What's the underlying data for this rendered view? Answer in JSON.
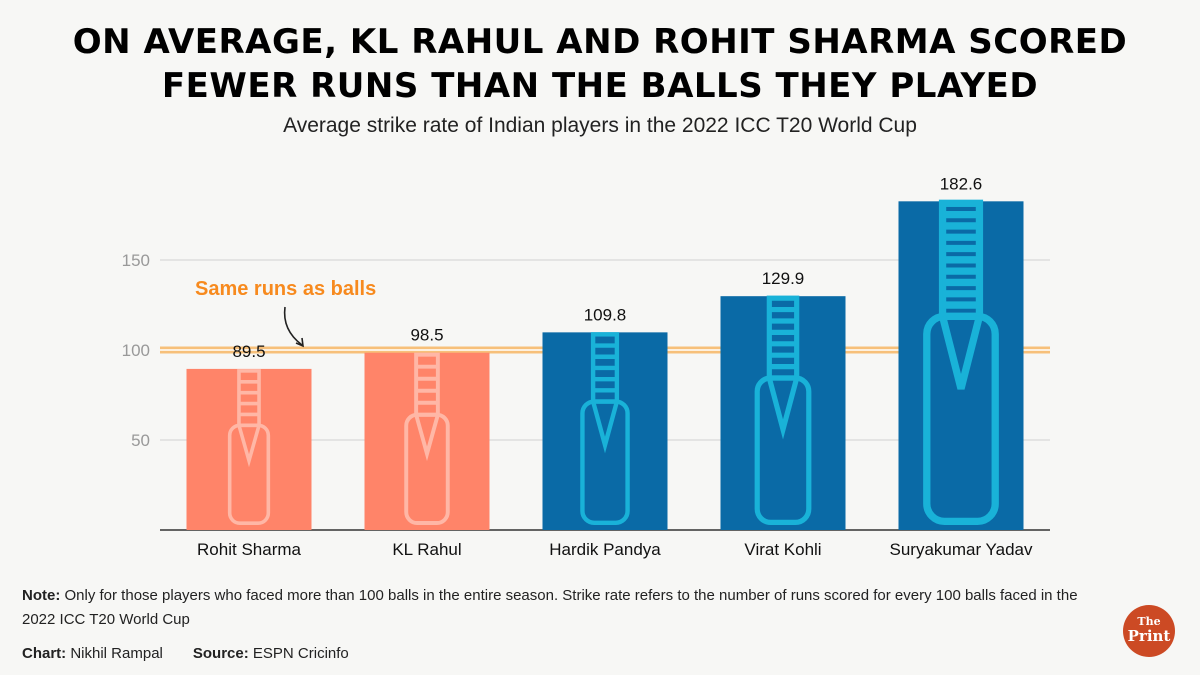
{
  "title_lines": [
    "ON AVERAGE, KL RAHUL AND ROHIT SHARMA SCORED",
    "FEWER RUNS THAN THE BALLS THEY PLAYED"
  ],
  "subtitle": "Average strike rate of Indian players in the 2022 ICC T20 World Cup",
  "chart_data": {
    "type": "bar",
    "categories": [
      "Rohit Sharma",
      "KL Rahul",
      "Hardik Pandya",
      "Virat Kohli",
      "Suryakumar Yadav"
    ],
    "values": [
      89.5,
      98.5,
      109.8,
      129.9,
      182.6
    ],
    "labels": [
      "89.5",
      "98.5",
      "109.8",
      "129.9",
      "182.6"
    ],
    "colors": [
      "#ff8469",
      "#ff8469",
      "#0a6aa6",
      "#0a6aa6",
      "#0a6aa6"
    ],
    "bat_colors": [
      "#ffb7a6",
      "#ffb7a6",
      "#19b2d8",
      "#19b2d8",
      "#19b2d8"
    ],
    "ylim": [
      0,
      182.6
    ],
    "yticks": [
      50,
      100,
      150
    ],
    "ytick_labels": [
      "50",
      "100",
      "150"
    ],
    "grid": true,
    "reference_line": {
      "value": 100,
      "label": "Same runs as balls",
      "color": "#f7c07a",
      "label_color": "#f78a1e"
    },
    "xlabel": "",
    "ylabel": ""
  },
  "note_label": "Note:",
  "note_text": " Only for those players who faced more than 100 balls in the entire season. Strike rate refers to the number of runs scored for every 100 balls faced in the 2022 ICC T20 World Cup",
  "chart_label": "Chart:",
  "chart_author": " Nikhil Rampal",
  "source_label": "Source:",
  "source_text": " ESPN Cricinfo",
  "logo": {
    "top": "The",
    "bottom": "Print"
  }
}
